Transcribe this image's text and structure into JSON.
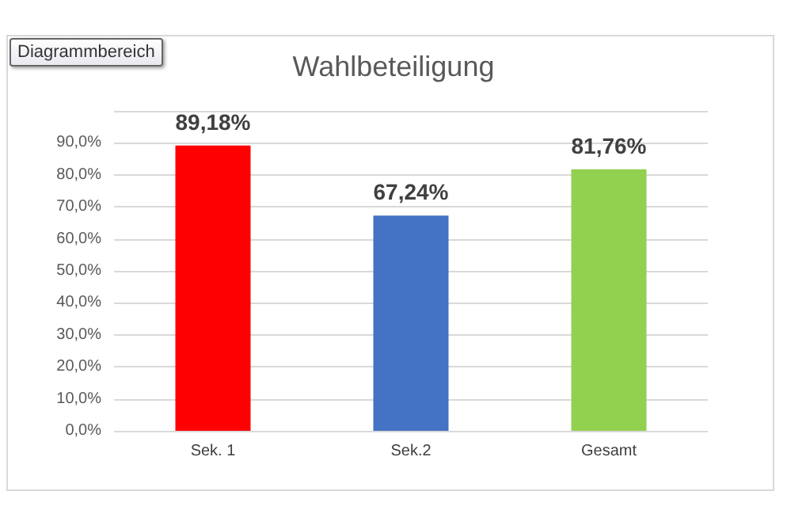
{
  "chart_data": {
    "type": "bar",
    "title": "Wahlbeteiligung",
    "categories": [
      "Sek. 1",
      "Sek.2",
      "Gesamt"
    ],
    "values": [
      89.18,
      67.24,
      81.76
    ],
    "colors": [
      "#ff0000",
      "#4472c4",
      "#92d050"
    ],
    "value_labels": [
      "89,18%",
      "67,24%",
      "81,76%"
    ],
    "ylim": [
      0,
      100
    ],
    "yticks": [
      {
        "value": 0,
        "label": "0,0%"
      },
      {
        "value": 10,
        "label": "10,0%"
      },
      {
        "value": 20,
        "label": "20,0%"
      },
      {
        "value": 30,
        "label": "30,0%"
      },
      {
        "value": 40,
        "label": "40,0%"
      },
      {
        "value": 50,
        "label": "50,0%"
      },
      {
        "value": 60,
        "label": "60,0%"
      },
      {
        "value": 70,
        "label": "70,0%"
      },
      {
        "value": 80,
        "label": "80,0%"
      },
      {
        "value": 90,
        "label": "90,0%"
      },
      {
        "value": 100,
        "label": null
      }
    ],
    "grid": "y",
    "annotations": [
      "Diagrammbereich"
    ]
  }
}
